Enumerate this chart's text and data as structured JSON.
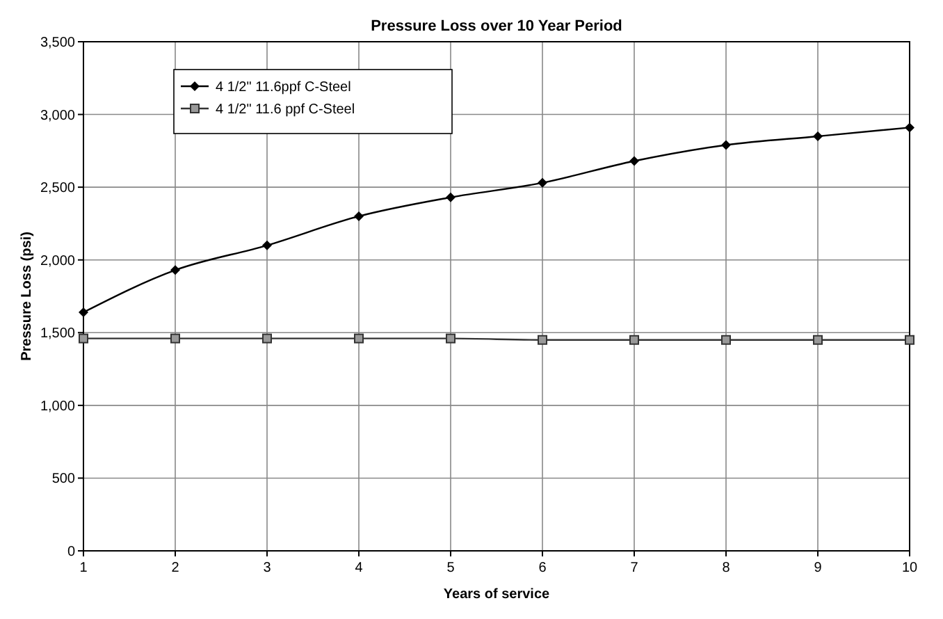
{
  "chart_data": {
    "type": "line",
    "title": "Pressure Loss over 10 Year Period",
    "xlabel": "Years of service",
    "ylabel": "Pressure Loss (psi)",
    "x": [
      1,
      2,
      3,
      4,
      5,
      6,
      7,
      8,
      9,
      10
    ],
    "series": [
      {
        "name": "4 1/2\" 11.6ppf C-Steel",
        "color": "#000000",
        "marker": "diamond",
        "values": [
          1640,
          1930,
          2100,
          2300,
          2430,
          2530,
          2680,
          2790,
          2850,
          2910
        ]
      },
      {
        "name": "4 1/2\" 11.6 ppf C-Steel",
        "color": "#333333",
        "marker": "square",
        "values": [
          1460,
          1460,
          1460,
          1460,
          1460,
          1450,
          1450,
          1450,
          1450,
          1450
        ]
      }
    ],
    "xlim": [
      1,
      10
    ],
    "xticks": [
      1,
      2,
      3,
      4,
      5,
      6,
      7,
      8,
      9,
      10
    ],
    "ylim": [
      0,
      3500
    ],
    "yticks": [
      {
        "value": 0,
        "label": "0"
      },
      {
        "value": 500,
        "label": "500"
      },
      {
        "value": 1000,
        "label": "1,000"
      },
      {
        "value": 1500,
        "label": "1,500"
      },
      {
        "value": 2000,
        "label": "2,000"
      },
      {
        "value": 2500,
        "label": "2,500"
      },
      {
        "value": 3000,
        "label": "3,000"
      },
      {
        "value": 3500,
        "label": "3,500"
      }
    ],
    "grid": true,
    "legend": "top left",
    "line_style": "solid"
  }
}
